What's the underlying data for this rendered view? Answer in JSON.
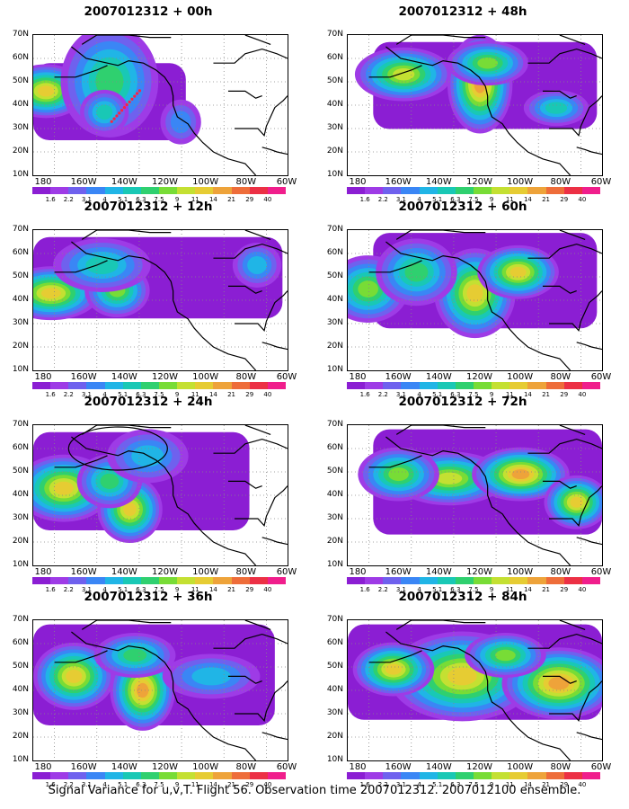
{
  "caption": "Signal Variance for u,v,T. Flight 56. Observation time 2007012312. 2007012100 ensemble.",
  "y_ticks": [
    "70N",
    "60N",
    "50N",
    "40N",
    "30N",
    "20N",
    "10N"
  ],
  "x_ticks": [
    "180",
    "160W",
    "140W",
    "120W",
    "100W",
    "80W",
    "60W"
  ],
  "colorbar": {
    "colors": [
      "#8b1ed3",
      "#9e3be6",
      "#6f61ee",
      "#3a86f5",
      "#20b5e6",
      "#19c8b5",
      "#2fd06f",
      "#78dc36",
      "#c4e032",
      "#e6cc33",
      "#eea33a",
      "#ee6d3a",
      "#ec3045",
      "#f01e8c"
    ],
    "labels": [
      "1.6",
      "2.2",
      "3.1",
      "4",
      "5.1",
      "6.3",
      "7.5",
      "9",
      "11",
      "14",
      "21",
      "29",
      "40"
    ]
  },
  "panels": [
    {
      "title": "2007012312 + 00h"
    },
    {
      "title": "2007012312 + 48h"
    },
    {
      "title": "2007012312 + 12h"
    },
    {
      "title": "2007012312 + 60h"
    },
    {
      "title": "2007012312 + 24h"
    },
    {
      "title": "2007012312 + 72h"
    },
    {
      "title": "2007012312 + 36h"
    },
    {
      "title": "2007012312 + 84h"
    }
  ]
}
